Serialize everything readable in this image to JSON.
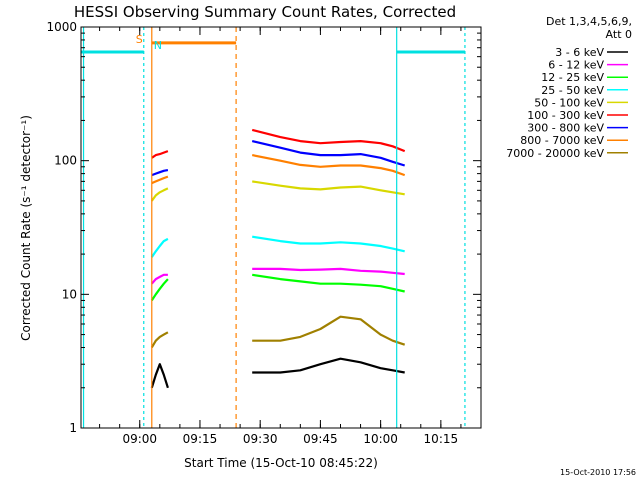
{
  "chart_data": {
    "type": "line",
    "title": "HESSI Observing Summary Count Rates, Corrected",
    "xlabel": "Start Time (15-Oct-10 08:45:22)",
    "ylabel": "Corrected Count Rate (s⁻¹ detector⁻¹)",
    "y_scale": "log",
    "ylim": [
      1,
      1000
    ],
    "xlim": [
      "08:45:22",
      "10:25:00"
    ],
    "x_ticks": [
      "09:00",
      "09:15",
      "09:30",
      "09:45",
      "10:00",
      "10:15"
    ],
    "y_ticks": [
      "1",
      "10",
      "100",
      "1000"
    ],
    "legend_header": [
      "Det 1,3,4,5,6,9,",
      "Att 0"
    ],
    "legend_position": "right",
    "footer_stamp": "15-Oct-2010 17:56",
    "markers": {
      "saa_label": "S",
      "night_label": "N",
      "saa_color": "#ff8000",
      "night_color": "#00e0e0"
    },
    "attenuator_level": 650,
    "saa_level": 760,
    "series": [
      {
        "name": "3 - 6 keV",
        "color": "#000000",
        "segments": [
          {
            "x": [
              "09:03",
              "09:04",
              "09:05",
              "09:06",
              "09:07"
            ],
            "y": [
              2.0,
              2.5,
              3.0,
              2.5,
              2.0
            ]
          },
          {
            "x": [
              "09:28",
              "09:35",
              "09:40",
              "09:45",
              "09:50",
              "09:55",
              "10:00",
              "10:03",
              "10:06"
            ],
            "y": [
              2.6,
              2.6,
              2.7,
              3.0,
              3.3,
              3.1,
              2.8,
              2.7,
              2.6
            ]
          }
        ]
      },
      {
        "name": "6 - 12 keV",
        "color": "#ff00ff",
        "segments": [
          {
            "x": [
              "09:03",
              "09:04",
              "09:05",
              "09:06",
              "09:07"
            ],
            "y": [
              12,
              13,
              13.5,
              14,
              14
            ]
          },
          {
            "x": [
              "09:28",
              "09:35",
              "09:40",
              "09:45",
              "09:50",
              "09:55",
              "10:00",
              "10:03",
              "10:06"
            ],
            "y": [
              15.5,
              15.5,
              15.2,
              15.3,
              15.5,
              15.0,
              14.8,
              14.5,
              14.2
            ]
          }
        ]
      },
      {
        "name": "12 - 25 keV",
        "color": "#00ff00",
        "segments": [
          {
            "x": [
              "09:03",
              "09:04",
              "09:05",
              "09:06",
              "09:07"
            ],
            "y": [
              9,
              10,
              11,
              12,
              13
            ]
          },
          {
            "x": [
              "09:28",
              "09:35",
              "09:40",
              "09:45",
              "09:50",
              "09:55",
              "10:00",
              "10:03",
              "10:06"
            ],
            "y": [
              14,
              13,
              12.5,
              12,
              12,
              11.8,
              11.5,
              11,
              10.5
            ]
          }
        ]
      },
      {
        "name": "25 - 50 keV",
        "color": "#00ffff",
        "segments": [
          {
            "x": [
              "09:03",
              "09:04",
              "09:05",
              "09:06",
              "09:07"
            ],
            "y": [
              19,
              21,
              23,
              25,
              26
            ]
          },
          {
            "x": [
              "09:28",
              "09:35",
              "09:40",
              "09:45",
              "09:50",
              "09:55",
              "10:00",
              "10:03",
              "10:06"
            ],
            "y": [
              27,
              25,
              24,
              24,
              24.5,
              24,
              23,
              22,
              21
            ]
          }
        ]
      },
      {
        "name": "50 - 100 keV",
        "color": "#d8d800",
        "segments": [
          {
            "x": [
              "09:03",
              "09:04",
              "09:05",
              "09:06",
              "09:07"
            ],
            "y": [
              50,
              55,
              58,
              60,
              62
            ]
          },
          {
            "x": [
              "09:28",
              "09:35",
              "09:40",
              "09:45",
              "09:50",
              "09:55",
              "10:00",
              "10:03",
              "10:06"
            ],
            "y": [
              70,
              65,
              62,
              61,
              63,
              64,
              60,
              58,
              56
            ]
          }
        ]
      },
      {
        "name": "100 - 300 keV",
        "color": "#ff0000",
        "segments": [
          {
            "x": [
              "09:03",
              "09:04",
              "09:05",
              "09:06",
              "09:07"
            ],
            "y": [
              105,
              110,
              112,
              115,
              118
            ]
          },
          {
            "x": [
              "09:28",
              "09:35",
              "09:40",
              "09:45",
              "09:50",
              "09:55",
              "10:00",
              "10:03",
              "10:06"
            ],
            "y": [
              170,
              150,
              140,
              135,
              138,
              140,
              135,
              128,
              118
            ]
          }
        ]
      },
      {
        "name": "300 - 800 keV",
        "color": "#0000ff",
        "segments": [
          {
            "x": [
              "09:03",
              "09:04",
              "09:05",
              "09:06",
              "09:07"
            ],
            "y": [
              78,
              80,
              82,
              84,
              85
            ]
          },
          {
            "x": [
              "09:28",
              "09:35",
              "09:40",
              "09:45",
              "09:50",
              "09:55",
              "10:00",
              "10:03",
              "10:06"
            ],
            "y": [
              140,
              125,
              115,
              110,
              110,
              112,
              105,
              98,
              92
            ]
          }
        ]
      },
      {
        "name": "800 - 7000 keV",
        "color": "#ff8000",
        "segments": [
          {
            "x": [
              "09:03",
              "09:04",
              "09:05",
              "09:06",
              "09:07"
            ],
            "y": [
              68,
              70,
              72,
              74,
              76
            ]
          },
          {
            "x": [
              "09:28",
              "09:35",
              "09:40",
              "09:45",
              "09:50",
              "09:55",
              "10:00",
              "10:03",
              "10:06"
            ],
            "y": [
              110,
              100,
              93,
              90,
              92,
              92,
              88,
              84,
              78
            ]
          }
        ]
      },
      {
        "name": "7000 - 20000 keV",
        "color": "#a08000",
        "segments": [
          {
            "x": [
              "09:03",
              "09:04",
              "09:05",
              "09:06",
              "09:07"
            ],
            "y": [
              4.0,
              4.5,
              4.8,
              5.0,
              5.2
            ]
          },
          {
            "x": [
              "09:28",
              "09:35",
              "09:40",
              "09:45",
              "09:50",
              "09:55",
              "10:00",
              "10:03",
              "10:06"
            ],
            "y": [
              4.5,
              4.5,
              4.8,
              5.5,
              6.8,
              6.5,
              5.0,
              4.5,
              4.2
            ]
          }
        ]
      }
    ]
  }
}
